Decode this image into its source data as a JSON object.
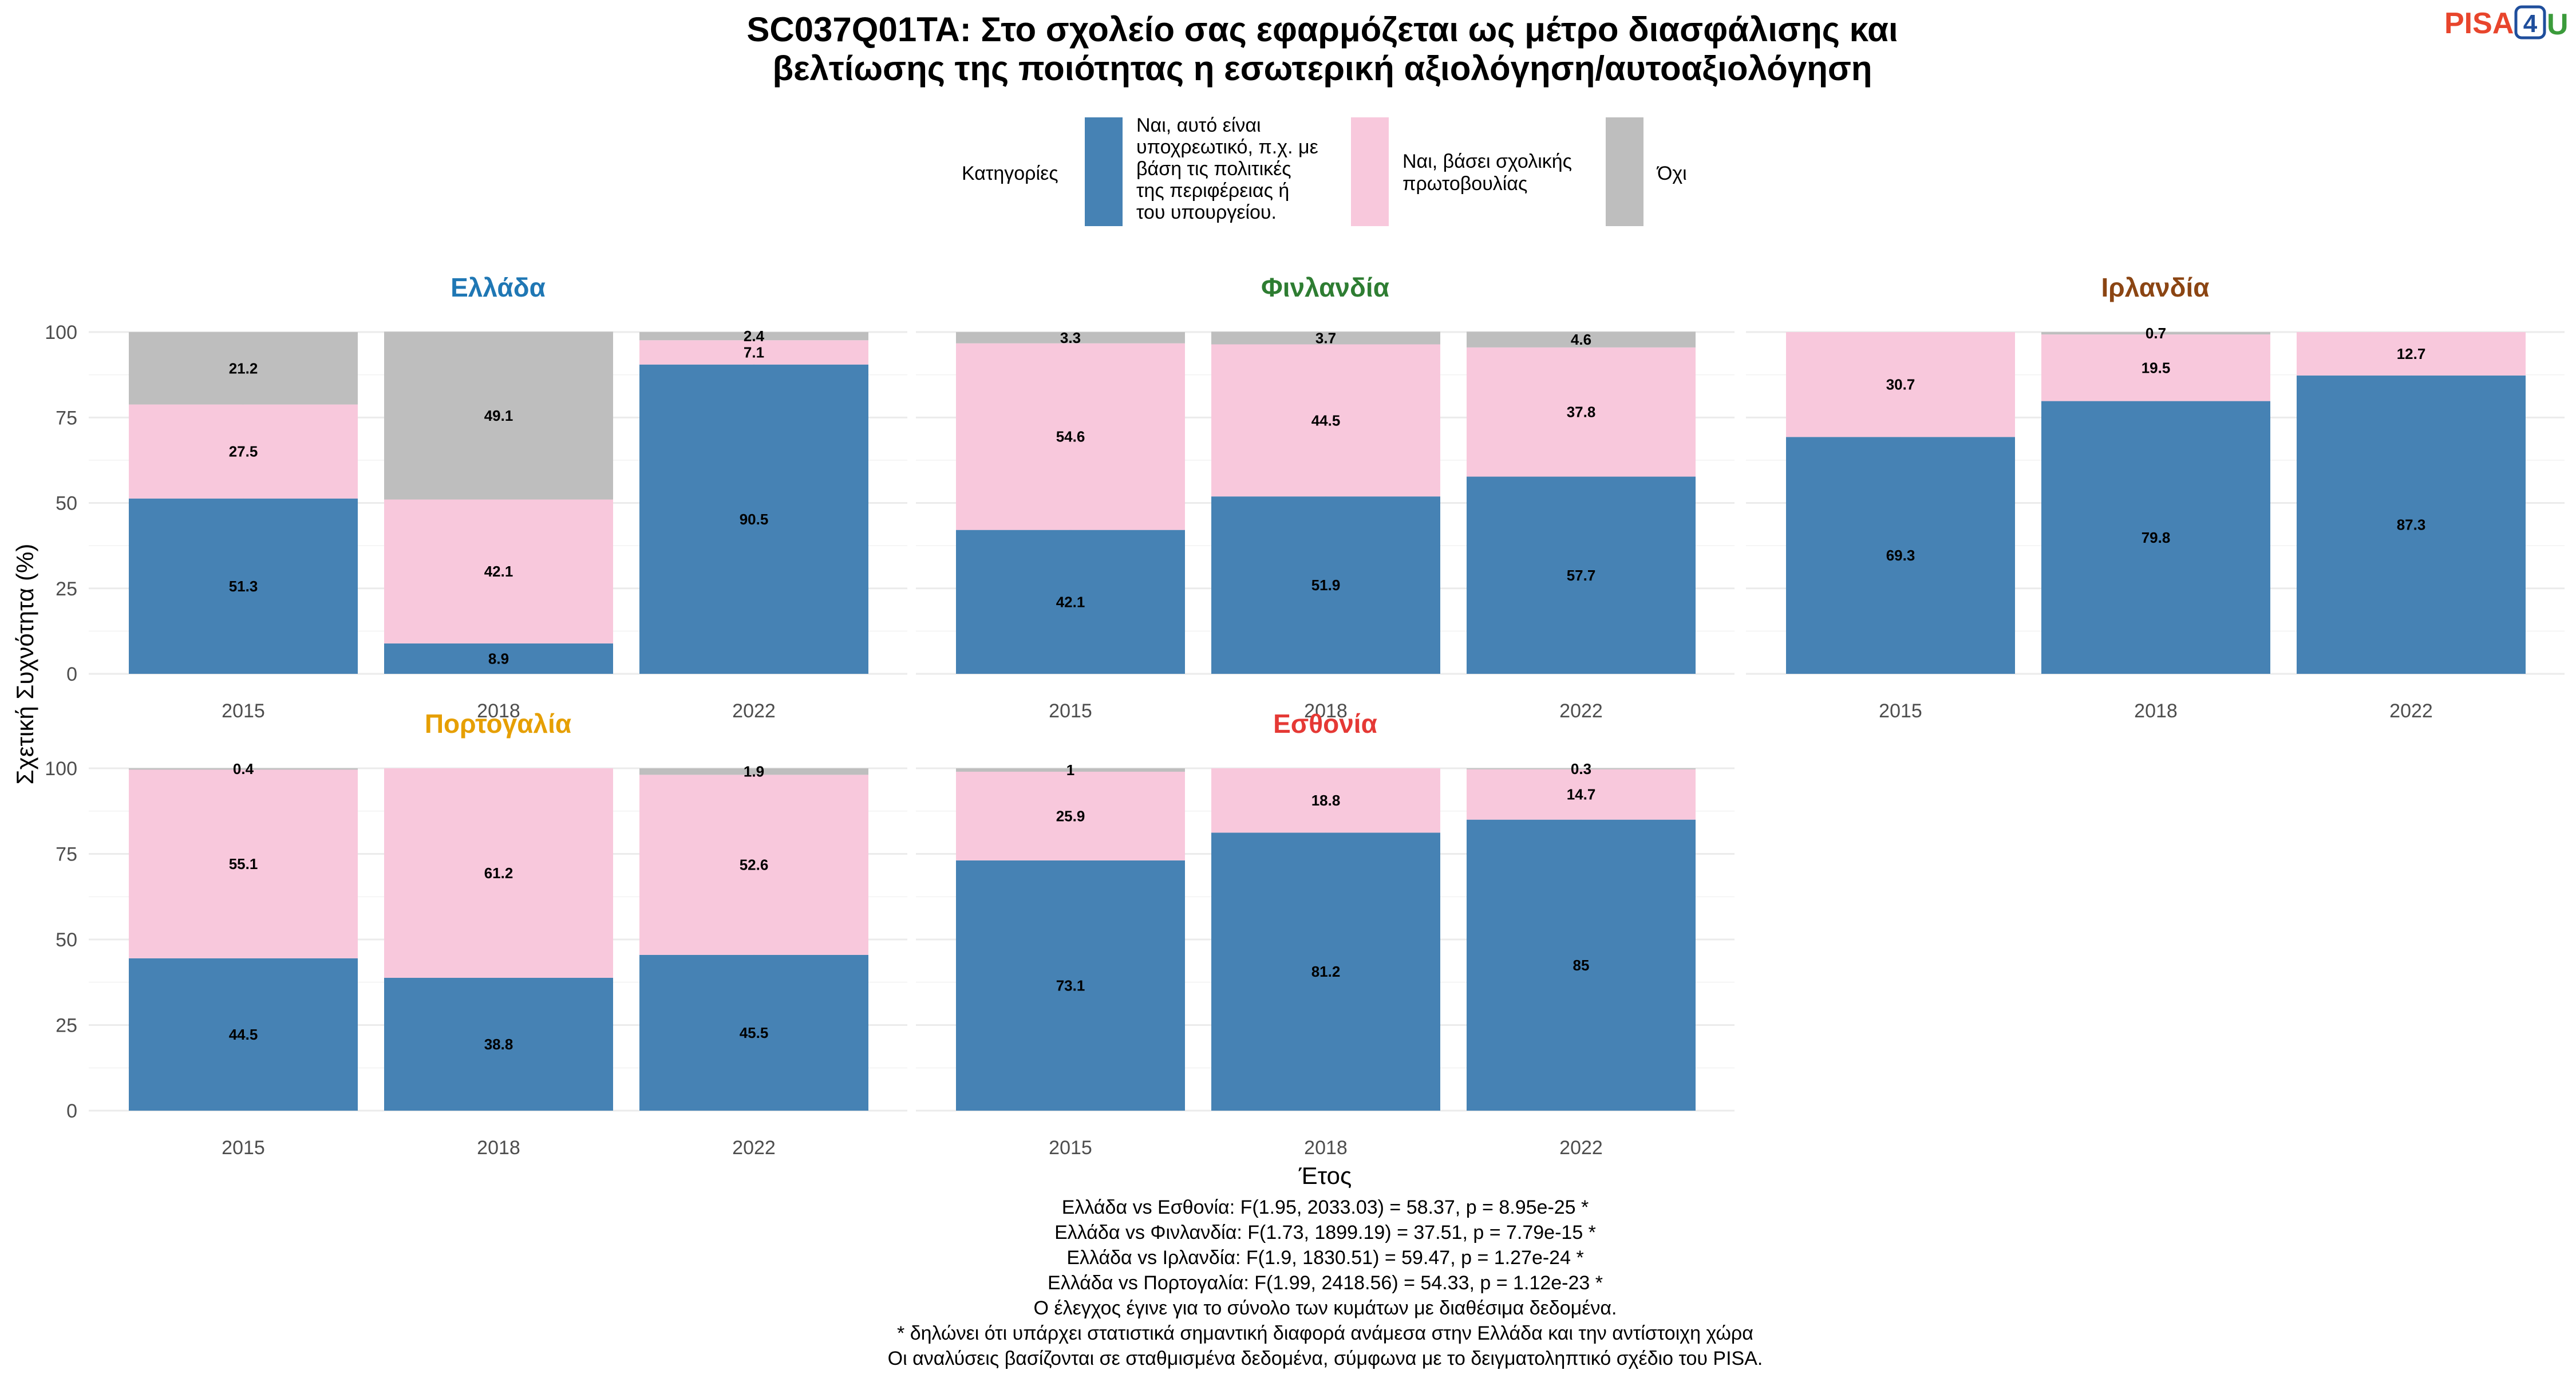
{
  "title_lines": [
    "SC037Q01TA: Στο σχολείο σας εφαρμόζεται ως μέτρο διασφάλισης και",
    "βελτίωσης της ποιότητας η εσωτερική αξιολόγηση/αυτοαξιολόγηση"
  ],
  "logo": {
    "part1": "PISA",
    "part2": "4",
    "part3": "U"
  },
  "legend": {
    "title": "Κατηγορίες",
    "items": [
      {
        "lines": [
          "Ναι, αυτό είναι",
          "υποχρεωτικό, π.χ. με",
          "βάση τις πολιτικές",
          "της περιφέρειας ή",
          "του υπουργείου."
        ],
        "color": "#4682b4"
      },
      {
        "lines": [
          "Ναι, βάσει σχολικής",
          "πρωτοβουλίας"
        ],
        "color": "#f8c8dc"
      },
      {
        "lines": [
          "Όχι"
        ],
        "color": "#bebebe"
      }
    ]
  },
  "chart_data": {
    "type": "bar",
    "stacked": true,
    "xlabel": "Έτος",
    "ylabel": "Σχετική Συχνότητα (%)",
    "ylim": [
      0,
      100
    ],
    "yticks": [
      "0",
      "25",
      "50",
      "75",
      "100"
    ],
    "categories": [
      "2015",
      "2018",
      "2022"
    ],
    "series_names": [
      "Ναι, αυτό είναι υποχρεωτικό, π.χ. με βάση τις πολιτικές της περιφέρειας ή του υπουργείου.",
      "Ναι, βάσει σχολικής πρωτοβουλίας",
      "Όχι"
    ],
    "series_colors": [
      "#4682b4",
      "#f8c8dc",
      "#bebebe"
    ],
    "panels": [
      {
        "name": "Ελλάδα",
        "title_color": "#1f77b4",
        "values": [
          [
            51.3,
            8.9,
            90.5
          ],
          [
            27.5,
            42.1,
            7.1
          ],
          [
            21.2,
            49.1,
            2.4
          ]
        ],
        "labels": [
          [
            "51.3",
            "8.9",
            "90.5"
          ],
          [
            "27.5",
            "42.1",
            "7.1"
          ],
          [
            "21.2",
            "49.1",
            "2.4"
          ]
        ]
      },
      {
        "name": "Φινλανδία",
        "title_color": "#2e7d32",
        "values": [
          [
            42.1,
            51.9,
            57.7
          ],
          [
            54.6,
            44.5,
            37.8
          ],
          [
            3.3,
            3.7,
            4.6
          ]
        ],
        "labels": [
          [
            "42.1",
            "51.9",
            "57.7"
          ],
          [
            "54.6",
            "44.5",
            "37.8"
          ],
          [
            "3.3",
            "3.7",
            "4.6"
          ]
        ]
      },
      {
        "name": "Ιρλανδία",
        "title_color": "#8b4513",
        "values": [
          [
            69.3,
            79.8,
            87.3
          ],
          [
            30.7,
            19.5,
            12.7
          ],
          [
            0,
            0.7,
            0
          ]
        ],
        "labels": [
          [
            "69.3",
            "79.8",
            "87.3"
          ],
          [
            "30.7",
            "19.5",
            "12.7"
          ],
          [
            "",
            "0.7",
            ""
          ]
        ]
      },
      {
        "name": "Πορτογαλία",
        "title_color": "#e69f00",
        "values": [
          [
            44.5,
            38.8,
            45.5
          ],
          [
            55.1,
            61.2,
            52.6
          ],
          [
            0.4,
            0,
            1.9
          ]
        ],
        "labels": [
          [
            "44.5",
            "38.8",
            "45.5"
          ],
          [
            "55.1",
            "61.2",
            "52.6"
          ],
          [
            "0.4",
            "",
            "1.9"
          ]
        ]
      },
      {
        "name": "Εσθονία",
        "title_color": "#e53935",
        "values": [
          [
            73.1,
            81.2,
            85
          ],
          [
            25.9,
            18.8,
            14.7
          ],
          [
            1,
            0,
            0.3
          ]
        ],
        "labels": [
          [
            "73.1",
            "81.2",
            "85"
          ],
          [
            "25.9",
            "18.8",
            "14.7"
          ],
          [
            "1",
            "",
            "0.3"
          ]
        ]
      }
    ]
  },
  "caption_lines": [
    "Ελλάδα vs Εσθονία: F(1.95, 2033.03) = 58.37, p = 8.95e-25 *",
    "Ελλάδα vs Φινλανδία: F(1.73, 1899.19) = 37.51, p = 7.79e-15 *",
    "Ελλάδα vs Ιρλανδία: F(1.9, 1830.51) = 59.47, p = 1.27e-24 *",
    "Ελλάδα vs Πορτογαλία: F(1.99, 2418.56) = 54.33, p = 1.12e-23 *",
    "Ο έλεγχος έγινε για το σύνολο των κυμάτων με διαθέσιμα δεδομένα.",
    "* δηλώνει ότι υπάρχει στατιστικά σημαντική διαφορά ανάμεσα στην Ελλάδα και την αντίστοιχη χώρα",
    "Οι αναλύσεις βασίζονται σε σταθμισμένα δεδομένα, σύμφωνα με το δειγματοληπτικό σχέδιο του PISA."
  ]
}
